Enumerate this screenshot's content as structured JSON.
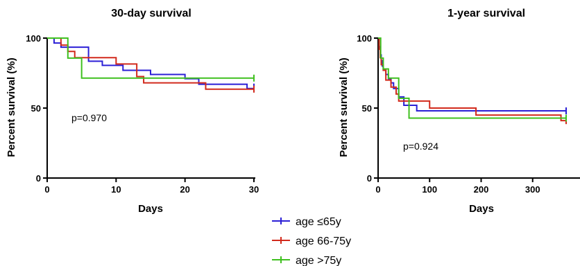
{
  "chart_data": [
    {
      "type": "line",
      "title": "30-day survival",
      "xlabel": "Days",
      "ylabel": "Percent survival (%)",
      "xlim": [
        0,
        30
      ],
      "ylim": [
        0,
        100
      ],
      "xticks": [
        0,
        10,
        20,
        30
      ],
      "yticks": [
        0,
        50,
        100
      ],
      "annotation": "p=0.970",
      "series": [
        {
          "name": "age ≤65y",
          "color": "#2b1fd6",
          "x": [
            0,
            1,
            2,
            3,
            6,
            8,
            11,
            15,
            20,
            22,
            29,
            30
          ],
          "y": [
            100,
            96.5,
            93.5,
            93.5,
            83.5,
            80.5,
            77,
            74,
            71,
            67,
            64,
            65
          ]
        },
        {
          "name": "age 66-75y",
          "color": "#d22a1c",
          "x": [
            0,
            2,
            3,
            4,
            5,
            10,
            13,
            14,
            23,
            30
          ],
          "y": [
            100,
            95,
            90.5,
            86,
            86,
            81.5,
            72.5,
            68,
            63.5,
            63.5
          ]
        },
        {
          "name": "age >75y",
          "color": "#3fc01f",
          "x": [
            0,
            3,
            5,
            30
          ],
          "y": [
            100,
            85.7,
            71.4,
            71.4
          ]
        }
      ]
    },
    {
      "type": "line",
      "title": "1-year survival",
      "xlabel": "Days",
      "ylabel": "Percent survival (%)",
      "xlim": [
        0,
        365
      ],
      "ylim": [
        0,
        100
      ],
      "xticks": [
        0,
        100,
        200,
        300
      ],
      "yticks": [
        0,
        50,
        100
      ],
      "annotation": "p=0.924",
      "series": [
        {
          "name": "age ≤65y",
          "color": "#2b1fd6",
          "x": [
            0,
            2,
            4,
            6,
            8,
            10,
            15,
            20,
            25,
            30,
            40,
            50,
            75,
            100,
            365
          ],
          "y": [
            100,
            94,
            88,
            84,
            80,
            77,
            74,
            71,
            68,
            64,
            58,
            52,
            48,
            48,
            48
          ]
        },
        {
          "name": "age 66-75y",
          "color": "#d22a1c",
          "x": [
            0,
            2,
            4,
            6,
            10,
            15,
            25,
            35,
            40,
            60,
            100,
            190,
            355,
            365
          ],
          "y": [
            100,
            92,
            86,
            81,
            77,
            70,
            65,
            60,
            55,
            55,
            50,
            45,
            41,
            41
          ]
        },
        {
          "name": "age >75y",
          "color": "#3fc01f",
          "x": [
            0,
            5,
            10,
            20,
            30,
            40,
            60,
            365
          ],
          "y": [
            100,
            85.7,
            78,
            71.4,
            71.4,
            57,
            42.8,
            42.8
          ]
        }
      ]
    }
  ],
  "legend": [
    {
      "label": "age ≤65y",
      "color": "#2b1fd6"
    },
    {
      "label": "age 66-75y",
      "color": "#d22a1c"
    },
    {
      "label": "age >75y",
      "color": "#3fc01f"
    }
  ]
}
